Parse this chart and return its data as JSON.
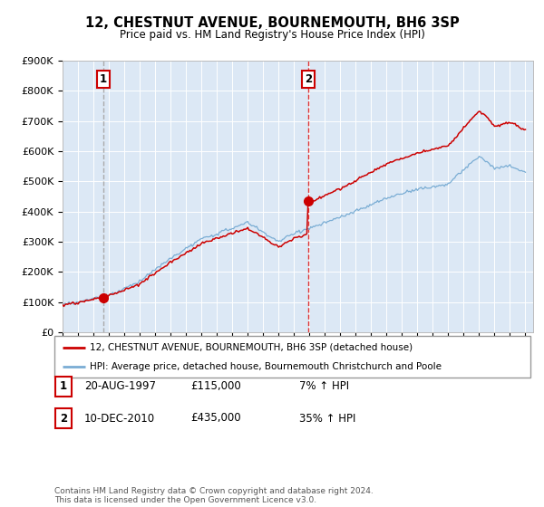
{
  "title": "12, CHESTNUT AVENUE, BOURNEMOUTH, BH6 3SP",
  "subtitle": "Price paid vs. HM Land Registry's House Price Index (HPI)",
  "legend_line1": "12, CHESTNUT AVENUE, BOURNEMOUTH, BH6 3SP (detached house)",
  "legend_line2": "HPI: Average price, detached house, Bournemouth Christchurch and Poole",
  "table_row1": [
    "1",
    "20-AUG-1997",
    "£115,000",
    "7% ↑ HPI"
  ],
  "table_row2": [
    "2",
    "10-DEC-2010",
    "£435,000",
    "35% ↑ HPI"
  ],
  "footer": "Contains HM Land Registry data © Crown copyright and database right 2024.\nThis data is licensed under the Open Government Licence v3.0.",
  "purchase1_year": 1997.62,
  "purchase1_price": 115000,
  "purchase2_year": 2010.95,
  "purchase2_price": 435000,
  "red_line_color": "#cc0000",
  "blue_line_color": "#7aadd4",
  "vline1_color": "#aaaaaa",
  "vline2_color": "#dd3333",
  "plot_bg_color": "#dce8f5",
  "ylim": [
    0,
    900000
  ],
  "xlim_start": 1995.0,
  "xlim_end": 2025.5
}
